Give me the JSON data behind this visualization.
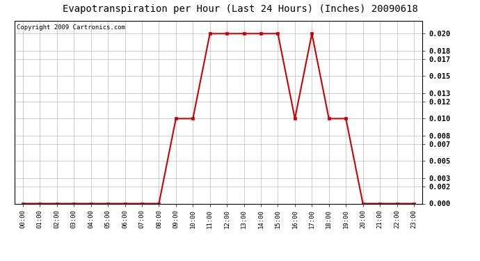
{
  "title": "Evapotranspiration per Hour (Last 24 Hours) (Inches) 20090618",
  "copyright": "Copyright 2009 Cartronics.com",
  "hours": [
    "00:00",
    "01:00",
    "02:00",
    "03:00",
    "04:00",
    "05:00",
    "06:00",
    "07:00",
    "08:00",
    "09:00",
    "10:00",
    "11:00",
    "12:00",
    "13:00",
    "14:00",
    "15:00",
    "16:00",
    "17:00",
    "18:00",
    "19:00",
    "20:00",
    "21:00",
    "22:00",
    "23:00"
  ],
  "values": [
    0.0,
    0.0,
    0.0,
    0.0,
    0.0,
    0.0,
    0.0,
    0.0,
    0.0,
    0.01,
    0.01,
    0.02,
    0.02,
    0.02,
    0.02,
    0.02,
    0.01,
    0.02,
    0.01,
    0.01,
    0.0,
    0.0,
    0.0,
    0.0
  ],
  "line_color": "#cc0000",
  "marker": "s",
  "marker_size": 2.5,
  "background_color": "#ffffff",
  "grid_color": "#bbbbbb",
  "ylim_min": 0.0,
  "ylim_max": 0.0215,
  "yticks": [
    0.0,
    0.002,
    0.003,
    0.005,
    0.007,
    0.008,
    0.01,
    0.012,
    0.013,
    0.015,
    0.017,
    0.018,
    0.02
  ],
  "title_fontsize": 10,
  "copyright_fontsize": 6.5,
  "tick_fontsize": 7.5,
  "xtick_fontsize": 6.5
}
